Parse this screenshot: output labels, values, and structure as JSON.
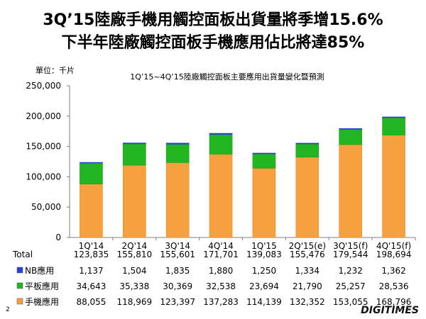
{
  "title_line1": "3Q’15陸廠手機用觸控面板出貨量將季增15.6%",
  "title_line2": "下半年陸廠觸控面板手機應用佔比將達85%",
  "unit_label": "單位：千片",
  "page_number": "2",
  "brand": "DIGITIMES",
  "colors": {
    "nb": "#2a3ed8",
    "tablet": "#22b722",
    "phone": "#f7a040",
    "phone_dark": "#e88a26",
    "tablet_dark": "#1a9a1a"
  },
  "chart_data": {
    "type": "bar",
    "stacked": true,
    "title": "1Q’15~4Q’15陸廠觸控面板主要應用出貨量變化暨預測",
    "categories": [
      "1Q'14",
      "2Q'14",
      "3Q'14",
      "4Q'14",
      "1Q'15",
      "2Q'15(e)",
      "3Q'15(f)",
      "4Q'15(f)"
    ],
    "y_ticks": [
      "250,000",
      "200,000",
      "150,000",
      "100,000",
      "50,000",
      "0"
    ],
    "ylim": [
      0,
      250000
    ],
    "grid": false,
    "series": [
      {
        "name": "手機應用",
        "values": [
          88055,
          118969,
          123397,
          137283,
          114139,
          132352,
          153055,
          168796
        ],
        "labels": [
          "88,055",
          "118,969",
          "123,397",
          "137,283",
          "114,139",
          "132,352",
          "153,055",
          "168,796"
        ]
      },
      {
        "name": "平板應用",
        "values": [
          34643,
          35338,
          30369,
          32538,
          23694,
          21790,
          25257,
          28536
        ],
        "labels": [
          "34,643",
          "35,338",
          "30,369",
          "32,538",
          "23,694",
          "21,790",
          "25,257",
          "28,536"
        ]
      },
      {
        "name": "NB應用",
        "values": [
          1137,
          1504,
          1835,
          1880,
          1250,
          1334,
          1232,
          1362
        ],
        "labels": [
          "1,137",
          "1,504",
          "1,835",
          "1,880",
          "1,250",
          "1,334",
          "1,232",
          "1,362"
        ]
      }
    ],
    "total": {
      "name": "Total",
      "labels": [
        "123,835",
        "155,810",
        "155,601",
        "171,701",
        "139,083",
        "155,476",
        "179,544",
        "198,694"
      ]
    }
  }
}
